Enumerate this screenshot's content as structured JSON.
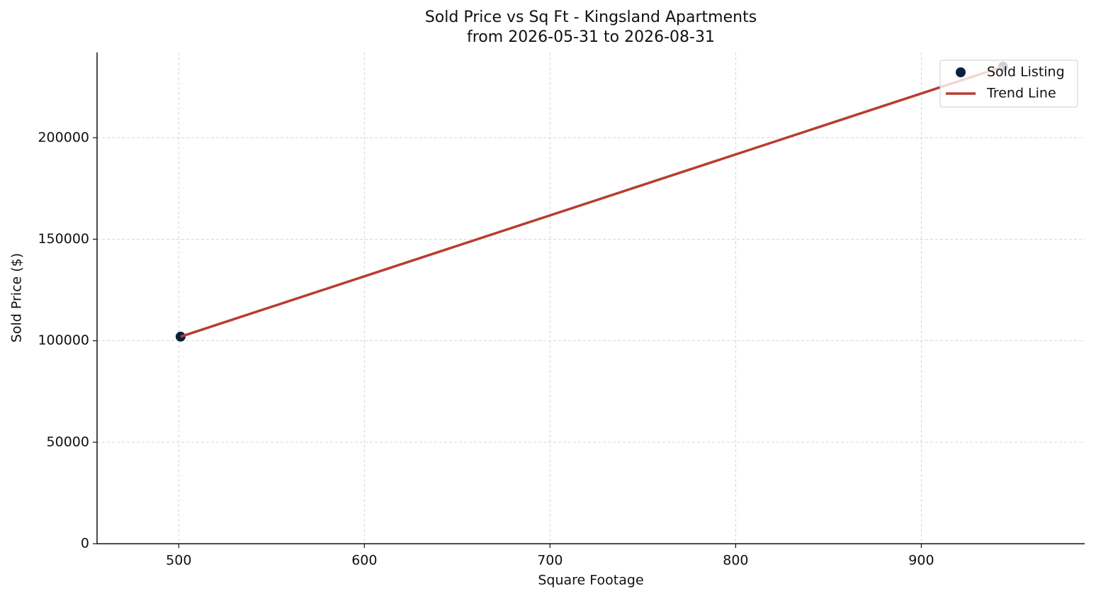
{
  "chart_data": {
    "type": "scatter",
    "title": "Sold Price vs Sq Ft - Kingsland Apartments",
    "subtitle": "from 2026-05-31 to 2026-08-31",
    "x_label": "Square Footage",
    "y_label": "Sold Price ($)",
    "xlim": [
      456,
      988
    ],
    "xticks": [
      500,
      600,
      700,
      800,
      900
    ],
    "ylim": [
      0,
      242000
    ],
    "yticks": [
      0,
      50000,
      100000,
      150000,
      200000
    ],
    "grid": true,
    "legend": "upper right",
    "series": [
      {
        "name": "Sold Listing",
        "type": "scatter",
        "color": "#0b1f3f",
        "x": [
          501,
          944
        ],
        "values": [
          102000,
          235000
        ]
      },
      {
        "name": "Trend Line",
        "type": "line",
        "color": "#b83c30",
        "x": [
          501,
          944
        ],
        "values": [
          102000,
          235000
        ]
      }
    ]
  }
}
